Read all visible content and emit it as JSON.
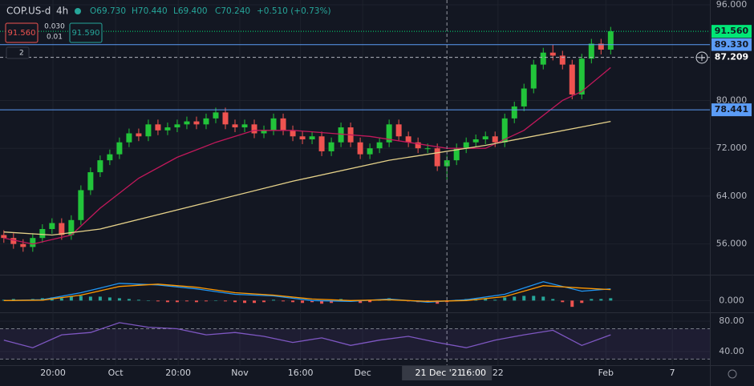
{
  "toolbar": {
    "symbol": "COP.US-d",
    "interval": "4h",
    "ohlc": [
      "O69.730",
      "H70.440",
      "L69.400",
      "C70.240"
    ],
    "change": "+0.510 (+0.73%)",
    "sell": "91.560",
    "spread": "0.030",
    "volume": "0.01",
    "buy": "91.590",
    "indicators": "2"
  },
  "chart_data": [
    {
      "type": "candlestick",
      "up_color": "#22c43a",
      "down_color": "#ef5350",
      "open": [
        57.5,
        57,
        56,
        55.5,
        57,
        58.5,
        59.5,
        57.5,
        60,
        65,
        68,
        70,
        71,
        73,
        74.5,
        74,
        76,
        75,
        75.5,
        76,
        76.5,
        76,
        77,
        78,
        76,
        75.5,
        76,
        74.5,
        75,
        77,
        75,
        74,
        73.5,
        74,
        71.5,
        73,
        75.5,
        73,
        71,
        72,
        73,
        76,
        74,
        73,
        72,
        72,
        69,
        70,
        72,
        73,
        73.5,
        74,
        73,
        77,
        79,
        82,
        86,
        88,
        87.5,
        86,
        81,
        87,
        89.5,
        88.5
      ],
      "high": [
        58.3,
        57.8,
        56.8,
        57.8,
        59.3,
        60.3,
        60.3,
        60.8,
        65.8,
        68.8,
        70.8,
        71.8,
        73.8,
        75.3,
        75.3,
        76.8,
        76.8,
        76.3,
        76.8,
        77.3,
        77.3,
        77.8,
        78.8,
        78.8,
        76.8,
        76.8,
        76.8,
        75.8,
        77.8,
        77.8,
        75.8,
        74.8,
        74.8,
        74.8,
        73.8,
        76.3,
        76.3,
        73.8,
        72.8,
        73.8,
        76.8,
        76.8,
        74.8,
        73.8,
        72.8,
        72.8,
        70.8,
        72.8,
        73.8,
        74.3,
        74.8,
        74.8,
        77.8,
        79.8,
        82.8,
        86.8,
        88.8,
        89.3,
        88.3,
        86.8,
        87.8,
        90.3,
        90.3,
        92.3
      ],
      "low": [
        56.2,
        55.2,
        54.7,
        54.7,
        56.2,
        57.7,
        56.7,
        56.7,
        59.2,
        64.2,
        67.2,
        69.2,
        70.2,
        72.2,
        73.2,
        73.2,
        74.2,
        74.2,
        74.7,
        75.2,
        75.2,
        75.2,
        76.2,
        75.2,
        74.7,
        74.7,
        73.7,
        73.7,
        74.2,
        74.2,
        73.2,
        72.7,
        72.7,
        70.7,
        70.7,
        72.2,
        72.2,
        70.2,
        70.2,
        71.2,
        72.2,
        73.2,
        72.2,
        71.2,
        71.2,
        68.2,
        66.8,
        69.2,
        71.2,
        72.2,
        72.7,
        72.2,
        72.2,
        76.2,
        78.2,
        81.2,
        85.2,
        86.7,
        85.2,
        80.2,
        80.2,
        86.2,
        87.7,
        87.7
      ],
      "close": [
        57,
        56,
        55.5,
        57,
        58.5,
        59.5,
        57.5,
        60,
        65,
        68,
        70,
        71,
        73,
        74.5,
        74,
        76,
        75,
        75.5,
        76,
        76.5,
        76,
        77,
        78,
        76,
        75.5,
        76,
        74.5,
        75,
        77,
        75,
        74,
        73.5,
        74,
        71.5,
        73,
        75.5,
        73,
        71,
        72,
        73,
        76,
        74,
        73,
        72,
        72,
        69,
        70,
        72,
        73,
        73.5,
        74,
        73,
        77,
        79,
        82,
        86,
        88,
        87.5,
        86,
        81,
        87,
        89.5,
        88.5,
        91.56
      ],
      "series": [
        {
          "color": "#c2185b",
          "x": [
            0,
            3,
            7,
            10,
            14,
            18,
            22,
            26,
            30,
            34,
            38,
            42,
            46,
            50,
            54,
            58,
            60,
            63
          ],
          "values": [
            57,
            56,
            57.5,
            62,
            67,
            70.5,
            73,
            75,
            75,
            74.5,
            74,
            73,
            72,
            72,
            75,
            80,
            81.5,
            85.5
          ]
        },
        {
          "color": "#e6d28a",
          "x": [
            0,
            5,
            10,
            20,
            30,
            40,
            50,
            63
          ],
          "values": [
            58,
            57.5,
            58.5,
            62.5,
            66.5,
            70,
            72.5,
            76.5
          ]
        }
      ],
      "levels": [
        {
          "value": 91.56,
          "label": "91.560",
          "color": "#00e676",
          "text_color": "#131722",
          "style": "dotted"
        },
        {
          "value": 89.33,
          "label": "89.330",
          "color": "#5b9cf6",
          "text_color": "#131722",
          "style": "solid"
        },
        {
          "value": 87.209,
          "label": "87.209",
          "color": "#b2b5be",
          "text_color": "#ffffff",
          "style": "dashed"
        },
        {
          "value": 78.441,
          "label": "78.441",
          "color": "#5b9cf6",
          "text_color": "#131722",
          "style": "solid"
        }
      ],
      "ylim": [
        51,
        96.8
      ],
      "yticks": [
        {
          "value": 96,
          "label": "96.000"
        },
        {
          "value": 80,
          "label": "80.000"
        },
        {
          "value": 72,
          "label": "72.000"
        },
        {
          "value": 64,
          "label": "64.000"
        },
        {
          "value": 56,
          "label": "56.000"
        }
      ],
      "xlim": [
        -0.4,
        73.3
      ],
      "xticks": [
        {
          "value": 5.1,
          "label": "20:00"
        },
        {
          "value": 11.6,
          "label": "Oct"
        },
        {
          "value": 18.1,
          "label": "20:00"
        },
        {
          "value": 24.5,
          "label": "Nov"
        },
        {
          "value": 30.8,
          "label": "16:00"
        },
        {
          "value": 37.25,
          "label": "Dec"
        },
        {
          "value": 51.3,
          "label": "22"
        },
        {
          "value": 62.5,
          "label": "Feb"
        },
        {
          "value": 69.4,
          "label": "7"
        }
      ],
      "crosshair": {
        "x": 46,
        "date": "21 Dec '21",
        "time": "16:00"
      }
    },
    {
      "type": "macd",
      "up_color": "#26a69a",
      "down_color": "#ef5350",
      "histogram": [
        0.1,
        0.2,
        0.1,
        0.2,
        0.3,
        0.4,
        0.3,
        0.5,
        0.6,
        0.5,
        0.5,
        0.4,
        0.3,
        0.2,
        0.1,
        0,
        -0.1,
        -0.2,
        -0.2,
        -0.1,
        -0.2,
        -0.1,
        0,
        -0.1,
        -0.2,
        -0.3,
        -0.3,
        -0.2,
        0.1,
        -0.1,
        -0.2,
        -0.3,
        -0.2,
        -0.4,
        -0.3,
        0.2,
        -0.1,
        -0.3,
        -0.2,
        0.1,
        0.3,
        0.1,
        -0.1,
        -0.2,
        -0.2,
        -0.4,
        -0.2,
        0.1,
        0.2,
        0.2,
        0.3,
        0.1,
        0.4,
        0.5,
        0.6,
        0.6,
        0.5,
        0.2,
        -0.2,
        -0.8,
        -0.3,
        0.2,
        0.2,
        0.3
      ],
      "series": [
        {
          "color": "#2196f3",
          "x": [
            0,
            4,
            8,
            12,
            16,
            20,
            24,
            28,
            32,
            36,
            40,
            44,
            48,
            52,
            56,
            60,
            63
          ],
          "values": [
            0,
            0.1,
            1.0,
            2.2,
            2.0,
            1.5,
            0.8,
            0.6,
            0,
            -0.1,
            0.2,
            -0.2,
            0.1,
            0.8,
            2.4,
            1.2,
            1.5
          ]
        },
        {
          "color": "#ff9800",
          "x": [
            0,
            4,
            8,
            12,
            16,
            20,
            24,
            28,
            32,
            36,
            40,
            44,
            48,
            52,
            56,
            60,
            63
          ],
          "values": [
            0,
            0.05,
            0.7,
            1.8,
            2.1,
            1.7,
            1.0,
            0.7,
            0.2,
            0,
            0.1,
            -0.1,
            0,
            0.5,
            1.9,
            1.6,
            1.4
          ]
        }
      ],
      "ylim": [
        -1.5,
        3.1
      ],
      "yticks": [
        {
          "value": 0,
          "label": "0.000"
        }
      ]
    },
    {
      "type": "rsi",
      "band": [
        30,
        70
      ],
      "band_color": "#7e57c2",
      "series": [
        {
          "color": "#7e57c2",
          "x": [
            0,
            3,
            6,
            9,
            12,
            15,
            18,
            21,
            24,
            27,
            30,
            33,
            36,
            39,
            42,
            45,
            48,
            51,
            54,
            57,
            60,
            63
          ],
          "values": [
            55,
            45,
            62,
            65,
            78,
            72,
            70,
            62,
            65,
            60,
            52,
            58,
            48,
            55,
            60,
            52,
            45,
            55,
            62,
            68,
            48,
            62
          ]
        }
      ],
      "ylim": [
        22,
        89.5
      ],
      "yticks": [
        {
          "value": 80,
          "label": "80.00"
        },
        {
          "value": 40,
          "label": "40.00"
        }
      ]
    }
  ]
}
